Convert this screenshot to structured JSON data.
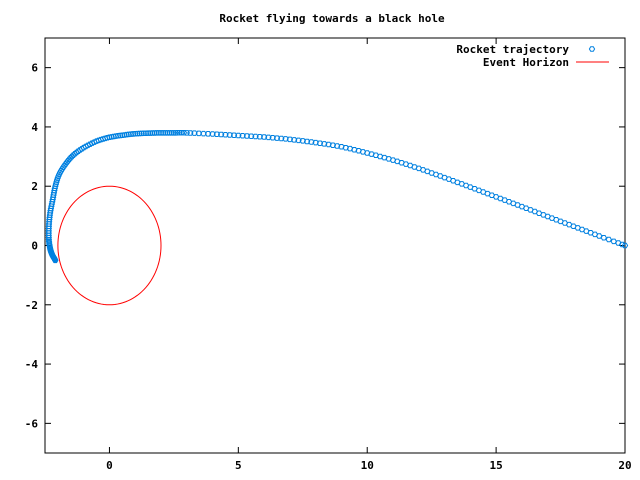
{
  "chart_data": {
    "type": "scatter",
    "title": "Rocket flying towards a black hole",
    "xlabel": "",
    "ylabel": "",
    "xlim": [
      -2.5,
      20
    ],
    "ylim": [
      -7,
      7
    ],
    "xticks": [
      0,
      5,
      10,
      15,
      20
    ],
    "yticks": [
      -6,
      -4,
      -2,
      0,
      2,
      4,
      6
    ],
    "xtick_labels": [
      "0",
      "5",
      "10",
      "15",
      "20"
    ],
    "ytick_labels": [
      "-6",
      "-4",
      "-2",
      "0",
      "2",
      "4",
      "6"
    ],
    "grid": false,
    "legend_position": "top-right",
    "series": [
      {
        "name": "Rocket trajectory",
        "style": "points",
        "marker": "hexagon-open",
        "color": "#0080e0",
        "x": [
          20.0,
          19.0,
          18.0,
          17.0,
          16.0,
          15.0,
          14.0,
          13.0,
          12.0,
          11.0,
          10.0,
          9.0,
          8.0,
          7.0,
          6.0,
          5.0,
          4.0,
          3.0,
          2.5,
          2.0,
          1.5,
          1.0,
          0.5,
          0.0,
          -0.5,
          -1.0,
          -1.4,
          -1.7,
          -1.95,
          -2.1,
          -2.2,
          -2.3,
          -2.35,
          -2.35,
          -2.3,
          -2.25,
          -2.2,
          -2.15,
          -2.1
        ],
        "y": [
          0.0,
          0.32,
          0.65,
          0.98,
          1.31,
          1.64,
          1.97,
          2.29,
          2.6,
          2.88,
          3.12,
          3.33,
          3.47,
          3.58,
          3.66,
          3.71,
          3.76,
          3.8,
          3.8,
          3.8,
          3.79,
          3.77,
          3.72,
          3.65,
          3.52,
          3.3,
          3.05,
          2.75,
          2.4,
          2.0,
          1.55,
          1.1,
          0.65,
          0.2,
          -0.1,
          -0.25,
          -0.35,
          -0.42,
          -0.5
        ]
      },
      {
        "name": "Event Horizon",
        "style": "line",
        "color": "#ff0000",
        "shape": "circle",
        "center": [
          0,
          0
        ],
        "radius": 2
      }
    ]
  }
}
